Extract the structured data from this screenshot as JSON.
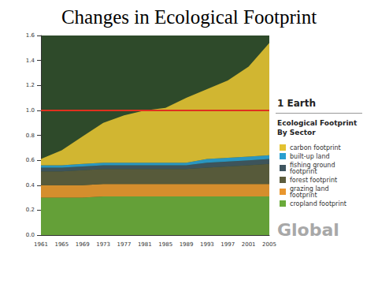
{
  "chart_data": {
    "type": "area",
    "title": "Changes in Ecological Footprint",
    "categories": [
      "1961",
      "1965",
      "1969",
      "1973",
      "1977",
      "1981",
      "1985",
      "1989",
      "1993",
      "1997",
      "2001",
      "2005"
    ],
    "stacked": true,
    "grid": false,
    "legend": "right",
    "legend_title": "Ecological Footprint By Sector",
    "annotations": [
      {
        "text": "1 Earth",
        "y": 1,
        "color": "#e0301e"
      },
      {
        "text": "Global",
        "color": "#a8a8a8"
      }
    ],
    "ylim": [
      0,
      1.6
    ],
    "yticks": [
      {
        "value": 0,
        "label": "0.0"
      },
      0.2,
      0.4,
      0.6,
      0.8,
      {
        "value": 1,
        "label": "1.0"
      },
      1.2,
      1.4,
      1.6
    ],
    "series": [
      {
        "name": "cropland footprint",
        "color": "#6aaa3a",
        "values": [
          0.3,
          0.3,
          0.3,
          0.31,
          0.31,
          0.31,
          0.31,
          0.31,
          0.31,
          0.31,
          0.31,
          0.31
        ]
      },
      {
        "name": "grazing land footprint",
        "color": "#e8962e",
        "values": [
          0.1,
          0.1,
          0.1,
          0.1,
          0.1,
          0.1,
          0.1,
          0.1,
          0.1,
          0.1,
          0.1,
          0.1
        ]
      },
      {
        "name": "forest footprint",
        "color": "#5c5c3c",
        "values": [
          0.11,
          0.11,
          0.12,
          0.12,
          0.12,
          0.12,
          0.12,
          0.12,
          0.13,
          0.14,
          0.15,
          0.16
        ]
      },
      {
        "name": "fishing ground footprint",
        "color": "#3f5560",
        "values": [
          0.03,
          0.03,
          0.03,
          0.03,
          0.03,
          0.03,
          0.03,
          0.03,
          0.04,
          0.04,
          0.04,
          0.04
        ]
      },
      {
        "name": "built-up land",
        "color": "#2a9fd0",
        "values": [
          0.02,
          0.02,
          0.02,
          0.02,
          0.02,
          0.02,
          0.02,
          0.02,
          0.03,
          0.03,
          0.03,
          0.03
        ]
      },
      {
        "name": "carbon footprint",
        "color": "#e3c232",
        "values": [
          0.05,
          0.12,
          0.22,
          0.32,
          0.38,
          0.42,
          0.44,
          0.52,
          0.56,
          0.62,
          0.72,
          0.9
        ]
      }
    ]
  }
}
